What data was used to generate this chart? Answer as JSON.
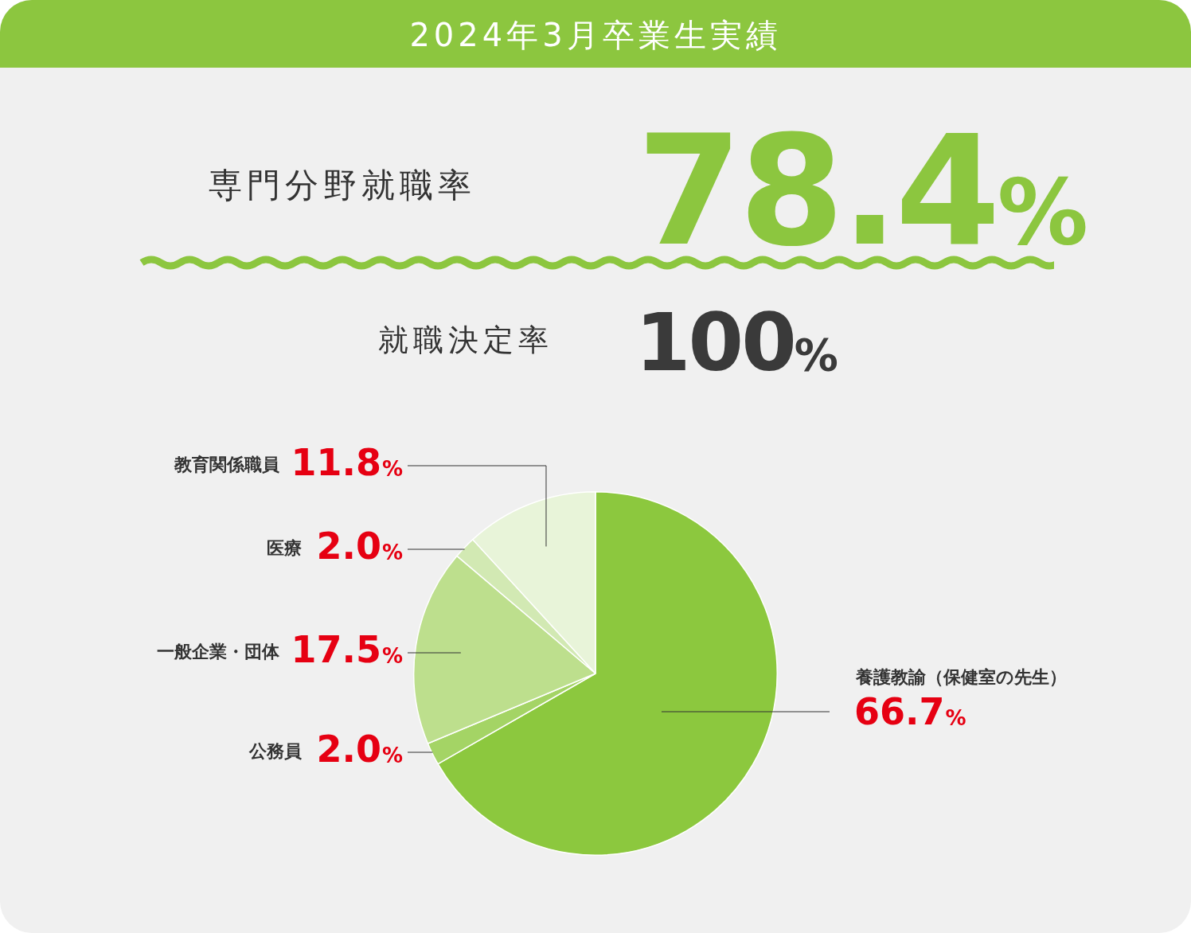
{
  "chart_data": {
    "type": "pie",
    "title": "2024年3月卒業生実績",
    "annotations": [
      "専門分野就職率",
      "78.4%",
      "就職決定率",
      "100%"
    ],
    "categories": [
      "養護教諭（保健室の先生）",
      "公務員",
      "一般企業・団体",
      "医療",
      "教育関係職員"
    ],
    "values": [
      66.7,
      2.0,
      17.5,
      2.0,
      11.8
    ],
    "value_labels": [
      "66.7%",
      "2.0%",
      "17.5%",
      "2.0%",
      "11.8%"
    ],
    "colors": [
      "#8cc83e",
      "#a4d465",
      "#bddf8d",
      "#d2e9b3",
      "#e8f4d9"
    ],
    "legend": false
  }
}
